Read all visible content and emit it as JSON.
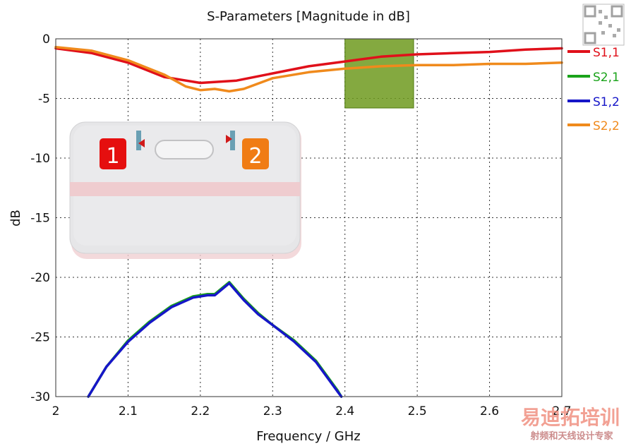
{
  "chart_data": {
    "type": "line",
    "title": "S-Parameters [Magnitude in dB]",
    "xlabel": "Frequency / GHz",
    "ylabel": "dB",
    "xlim": [
      2,
      2.7
    ],
    "ylim": [
      -30,
      0
    ],
    "xticks": [
      "2",
      "2.1",
      "2.2",
      "2.3",
      "2.4",
      "2.5",
      "2.6",
      "2.7"
    ],
    "yticks": [
      "0",
      "-5",
      "-10",
      "-15",
      "-20",
      "-25",
      "-30"
    ],
    "grid": true,
    "legend_position": "right",
    "highlight_band": {
      "x": [
        2.4,
        2.495
      ],
      "y": [
        -5.8,
        0
      ],
      "color": "#6f9a1f"
    },
    "series": [
      {
        "name": "S1,1",
        "color": "#e0101a",
        "x": [
          2.0,
          2.05,
          2.1,
          2.15,
          2.2,
          2.25,
          2.3,
          2.35,
          2.4,
          2.45,
          2.5,
          2.55,
          2.6,
          2.65,
          2.7
        ],
        "y": [
          -0.8,
          -1.2,
          -2.0,
          -3.2,
          -3.7,
          -3.5,
          -2.9,
          -2.3,
          -1.9,
          -1.5,
          -1.3,
          -1.2,
          -1.1,
          -0.9,
          -0.8
        ]
      },
      {
        "name": "S2,1",
        "color": "#1aa31a",
        "x": [
          2.045,
          2.07,
          2.1,
          2.13,
          2.16,
          2.19,
          2.21,
          2.22,
          2.24,
          2.26,
          2.28,
          2.3,
          2.33,
          2.36,
          2.39,
          2.395
        ],
        "y": [
          -30,
          -27.5,
          -25.3,
          -23.7,
          -22.4,
          -21.6,
          -21.4,
          -21.4,
          -20.4,
          -21.8,
          -23.0,
          -24.0,
          -25.3,
          -27.0,
          -29.5,
          -30
        ]
      },
      {
        "name": "S1,2",
        "color": "#1616c8",
        "x": [
          2.045,
          2.07,
          2.1,
          2.13,
          2.16,
          2.19,
          2.21,
          2.22,
          2.24,
          2.26,
          2.28,
          2.3,
          2.33,
          2.36,
          2.39,
          2.395
        ],
        "y": [
          -30,
          -27.5,
          -25.4,
          -23.8,
          -22.5,
          -21.7,
          -21.5,
          -21.5,
          -20.5,
          -21.9,
          -23.1,
          -24.0,
          -25.4,
          -27.1,
          -29.6,
          -30
        ]
      },
      {
        "name": "S2,2",
        "color": "#f08a1c",
        "x": [
          2.0,
          2.05,
          2.1,
          2.15,
          2.18,
          2.2,
          2.22,
          2.24,
          2.26,
          2.3,
          2.35,
          2.4,
          2.45,
          2.5,
          2.55,
          2.6,
          2.65,
          2.7
        ],
        "y": [
          -0.7,
          -1.0,
          -1.8,
          -3.0,
          -4.0,
          -4.3,
          -4.2,
          -4.4,
          -4.2,
          -3.3,
          -2.8,
          -2.5,
          -2.3,
          -2.2,
          -2.2,
          -2.1,
          -2.1,
          -2.0
        ]
      }
    ]
  },
  "inset": {
    "port1_label": "1",
    "port2_label": "2",
    "port1_color": "#e50f0f",
    "port2_color": "#f07c14"
  },
  "watermark": {
    "brand": "易迪拓培训",
    "tagline": "射频和天线设计专家"
  }
}
